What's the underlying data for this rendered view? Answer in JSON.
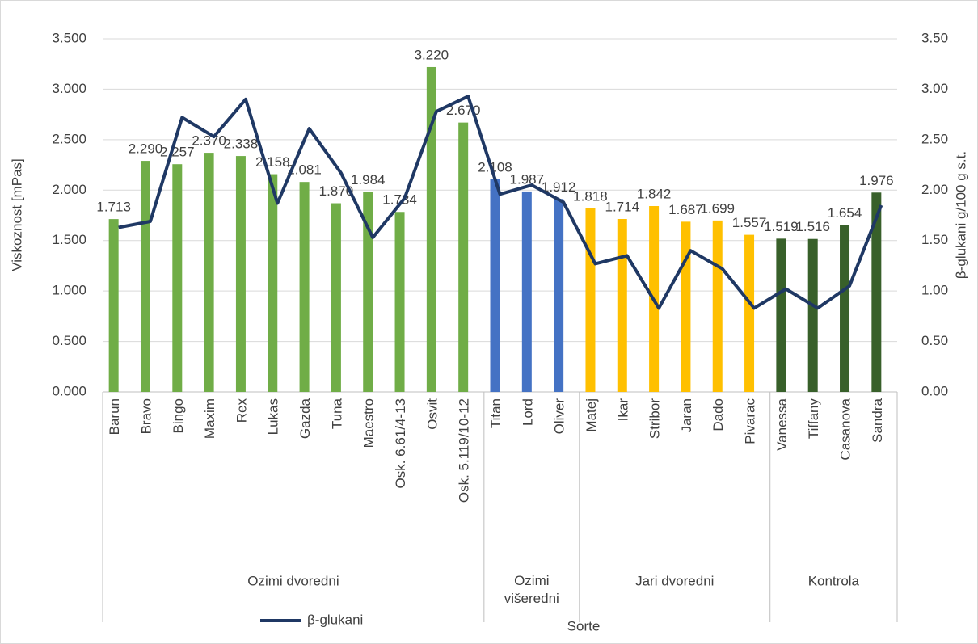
{
  "chart_data": {
    "type": "bar",
    "y_label": "Viskoznost [mPas]",
    "y2_label": "β-glukani g/100 g s.t.",
    "x_label": "Sorte",
    "groups": [
      {
        "name": "Ozimi dvoredni",
        "color": "#70ad47",
        "categories": [
          "Barun",
          "Bravo",
          "Bingo",
          "Maxim",
          "Rex",
          "Lukas",
          "Gazda",
          "Tuna",
          "Maestro",
          "Osk. 6.61/4-13",
          "Osvit",
          "Osk. 5.119/10-12"
        ]
      },
      {
        "name": "Ozimi višeredni",
        "color": "#4472c4",
        "categories": [
          "Titan",
          "Lord",
          "Oliver"
        ]
      },
      {
        "name": "Jari dvoredni",
        "color": "#ffc000",
        "categories": [
          "Matej",
          "Ikar",
          "Stribor",
          "Jaran",
          "Dado",
          "Pivarac"
        ]
      },
      {
        "name": "Kontrola",
        "color": "#38602a",
        "categories": [
          "Vanessa",
          "Tiffany",
          "Casanova",
          "Sandra"
        ]
      }
    ],
    "values": [
      1.713,
      2.29,
      2.257,
      2.37,
      2.338,
      2.158,
      2.081,
      1.87,
      1.984,
      1.784,
      3.22,
      2.67,
      2.108,
      1.987,
      1.912,
      1.818,
      1.714,
      1.842,
      1.687,
      1.699,
      1.557,
      1.519,
      1.516,
      1.654,
      1.976
    ],
    "value_labels": [
      "1.713",
      "2.290",
      "2.257",
      "2.370",
      "2.338",
      "2.158",
      "2.081",
      "1.870",
      "1.984",
      "1.784",
      "3.220",
      "2.670",
      "2.108",
      "1.987",
      "1.912",
      "1.818",
      "1.714",
      "1.842",
      "1.687",
      "1.699",
      "1.557",
      "1.519",
      "1.516",
      "1.654",
      "1.976"
    ],
    "series": [
      {
        "name": "β-glukani",
        "color": "#1f3864",
        "axis": "y2",
        "values": [
          1.63,
          1.69,
          2.72,
          2.53,
          2.9,
          1.87,
          2.61,
          2.17,
          1.53,
          1.92,
          2.78,
          2.93,
          1.96,
          2.05,
          1.88,
          1.27,
          1.35,
          0.83,
          1.4,
          1.22,
          0.83,
          1.02,
          0.83,
          1.05,
          1.85
        ]
      }
    ],
    "ylim": [
      0,
      3.5
    ],
    "yticks": [
      {
        "value": 0,
        "label": "0.000"
      },
      {
        "value": 0.5,
        "label": "0.500"
      },
      {
        "value": 1,
        "label": "1.000"
      },
      {
        "value": 1.5,
        "label": "1.500"
      },
      {
        "value": 2,
        "label": "2.000"
      },
      {
        "value": 2.5,
        "label": "2.500"
      },
      {
        "value": 3,
        "label": "3.000"
      },
      {
        "value": 3.5,
        "label": "3.500"
      }
    ],
    "y2lim": [
      0,
      3.5
    ],
    "y2ticks": [
      {
        "value": 0,
        "label": "0.00"
      },
      {
        "value": 0.5,
        "label": "0.50"
      },
      {
        "value": 1,
        "label": "1.00"
      },
      {
        "value": 1.5,
        "label": "1.50"
      },
      {
        "value": 2,
        "label": "2.00"
      },
      {
        "value": 2.5,
        "label": "2.50"
      },
      {
        "value": 3,
        "label": "3.00"
      },
      {
        "value": 3.5,
        "label": "3.50"
      }
    ],
    "grid": true,
    "legend": "bottom"
  }
}
